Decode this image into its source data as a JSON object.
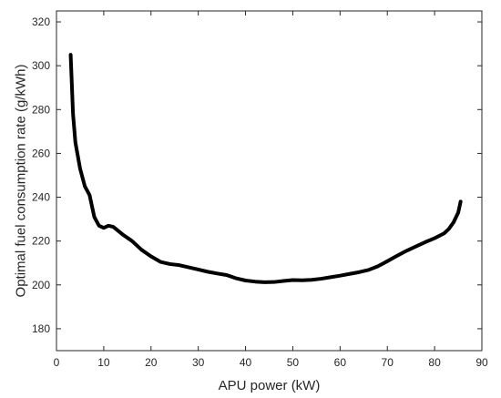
{
  "chart_data": {
    "type": "line",
    "title": "",
    "xlabel": "APU power (kW)",
    "ylabel": "Optimal fuel consumption rate (g/kWh)",
    "xlim": [
      0,
      90
    ],
    "ylim": [
      170,
      325
    ],
    "xticks": [
      0,
      10,
      20,
      30,
      40,
      50,
      60,
      70,
      80,
      90
    ],
    "yticks": [
      180,
      200,
      220,
      240,
      260,
      280,
      300,
      320
    ],
    "grid": false,
    "legend": "none",
    "series": [
      {
        "color": "#000000",
        "x": [
          3,
          3.5,
          4,
          5,
          6,
          7,
          7.5,
          8,
          9,
          10,
          11,
          12,
          14,
          16,
          18,
          20,
          22,
          24,
          26,
          28,
          30,
          32,
          34,
          36,
          38,
          40,
          42,
          44,
          46,
          48,
          50,
          52,
          54,
          56,
          58,
          60,
          62,
          64,
          66,
          68,
          70,
          72,
          74,
          76,
          78,
          80,
          82,
          83,
          84,
          85,
          85.5
        ],
        "y": [
          305,
          278,
          265,
          253,
          245,
          241,
          236,
          231,
          227,
          226,
          227,
          226.5,
          223,
          220,
          216,
          213,
          210.5,
          209.5,
          209,
          208,
          207,
          206,
          205.2,
          204.5,
          203,
          202,
          201.5,
          201.2,
          201.3,
          201.8,
          202.2,
          202.1,
          202.3,
          202.8,
          203.5,
          204.2,
          205,
          205.8,
          206.8,
          208.5,
          210.8,
          213.2,
          215.5,
          217.5,
          219.5,
          221.3,
          223.5,
          225.5,
          228.5,
          233,
          238
        ]
      }
    ]
  }
}
